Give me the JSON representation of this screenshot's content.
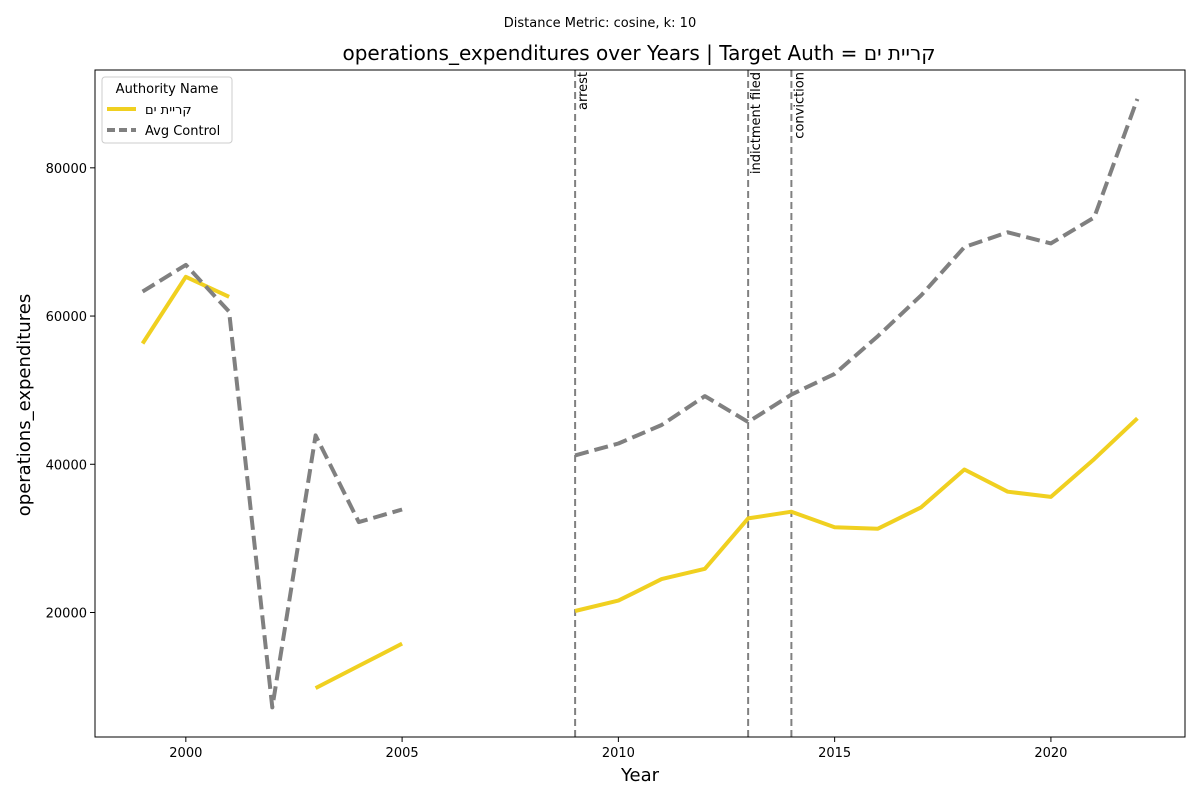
{
  "chart_data": {
    "type": "line",
    "suptitle": "Distance Metric: cosine, k: 10",
    "title": "operations_expenditures over Years | Target Auth = קריית ים",
    "xlabel": "Year",
    "ylabel": "operations_expenditures",
    "xlim": [
      1997.9,
      2023.1
    ],
    "ylim": [
      3200,
      93200
    ],
    "xticks": [
      2000,
      2005,
      2010,
      2015,
      2020
    ],
    "yticks": [
      20000,
      40000,
      60000,
      80000
    ],
    "grid": false,
    "legend": {
      "title": "Authority Name",
      "position": "top-left"
    },
    "series": [
      {
        "name": "קריית ים",
        "color": "#f0d020",
        "style": "solid",
        "x": [
          1999,
          2000,
          2001,
          2002,
          2003,
          2004,
          2005,
          2006,
          2007,
          2008,
          2009,
          2010,
          2011,
          2012,
          2013,
          2014,
          2015,
          2016,
          2017,
          2018,
          2019,
          2020,
          2021,
          2022
        ],
        "values": [
          56300,
          65300,
          62600,
          null,
          9800,
          12800,
          15800,
          null,
          null,
          null,
          20200,
          21600,
          24500,
          25900,
          32700,
          33600,
          31500,
          31300,
          34200,
          39300,
          36300,
          35600,
          40700,
          46200
        ]
      },
      {
        "name": "Avg Control",
        "color": "#808080",
        "style": "dashed",
        "x": [
          1999,
          2000,
          2001,
          2002,
          2003,
          2004,
          2005,
          2006,
          2007,
          2008,
          2009,
          2010,
          2011,
          2012,
          2013,
          2014,
          2015,
          2016,
          2017,
          2018,
          2019,
          2020,
          2021,
          2022
        ],
        "values": [
          63300,
          66900,
          60600,
          7200,
          43900,
          32200,
          33900,
          null,
          null,
          null,
          41200,
          42800,
          45300,
          49200,
          45700,
          49400,
          52200,
          57300,
          62800,
          69300,
          71300,
          69800,
          73300,
          89300
        ]
      }
    ],
    "events": [
      {
        "x": 2009,
        "label": "arrest"
      },
      {
        "x": 2013,
        "label": "indictment filed"
      },
      {
        "x": 2014,
        "label": "conviction"
      }
    ]
  }
}
